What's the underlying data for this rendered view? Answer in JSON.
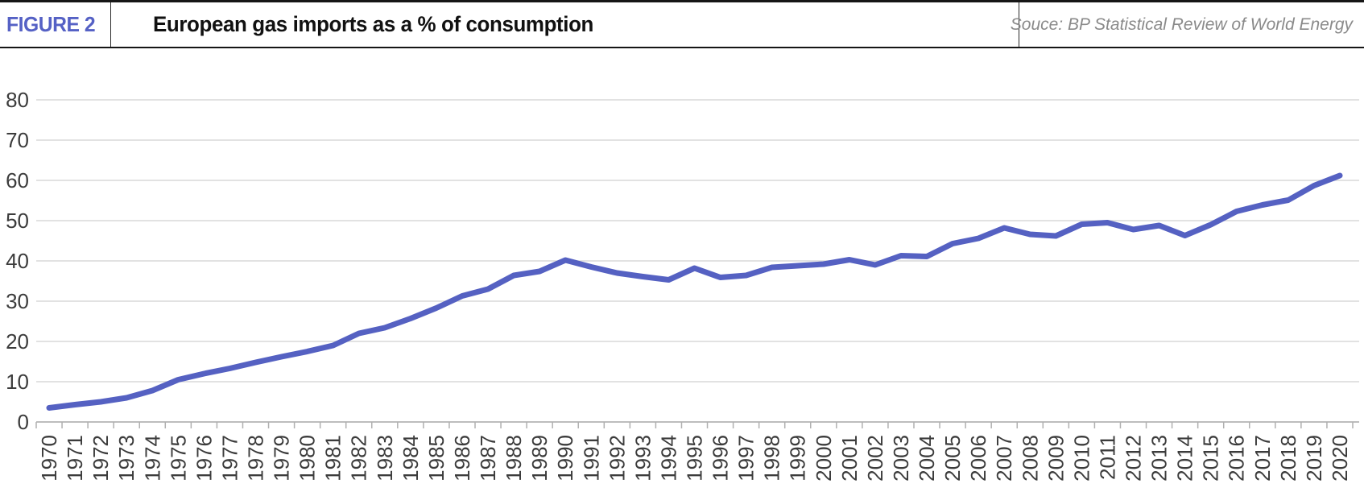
{
  "figure": {
    "label": "FIGURE 2",
    "title": "European gas imports as a % of consumption",
    "source": "Souce: BP Statistical Review of World Energy"
  },
  "colors": {
    "line": "#5561c2",
    "figure_label": "#5561c5",
    "title_text": "#111111",
    "source_text": "#8a8a8a",
    "gridline": "#d9d9d9",
    "axis_line": "#bdbdbd",
    "tick_mark": "#b0b0b0",
    "axis_label": "#3c3c3c",
    "header_border": "#161616",
    "background": "#ffffff"
  },
  "chart_data": {
    "type": "line",
    "title": "European gas imports as a % of consumption",
    "xlabel": "",
    "ylabel": "",
    "x": [
      1970,
      1971,
      1972,
      1973,
      1974,
      1975,
      1976,
      1977,
      1978,
      1979,
      1980,
      1981,
      1982,
      1983,
      1984,
      1985,
      1986,
      1987,
      1988,
      1989,
      1990,
      1991,
      1992,
      1993,
      1994,
      1995,
      1996,
      1997,
      1998,
      1999,
      2000,
      2001,
      2002,
      2003,
      2004,
      2005,
      2006,
      2007,
      2008,
      2009,
      2010,
      2011,
      2012,
      2013,
      2014,
      2015,
      2016,
      2017,
      2018,
      2019,
      2020
    ],
    "series": [
      {
        "name": "European gas imports as % of consumption",
        "values": [
          3.5,
          4.3,
          5,
          6,
          7.8,
          10.5,
          12,
          13.3,
          14.8,
          16.2,
          17.5,
          19,
          22,
          23.4,
          25.7,
          28.3,
          31.3,
          33,
          36.4,
          37.4,
          40.2,
          38.5,
          37,
          36.1,
          35.3,
          38.2,
          35.9,
          36.4,
          38.4,
          38.8,
          39.2,
          40.3,
          39,
          41.3,
          41.1,
          44.3,
          45.6,
          48.2,
          46.6,
          46.2,
          49.1,
          49.5,
          47.8,
          48.8,
          46.3,
          49,
          52.3,
          53.9,
          55.1,
          58.7,
          61.2
        ]
      }
    ],
    "ylim": [
      0,
      80
    ],
    "yticks": [
      0,
      10,
      20,
      30,
      40,
      50,
      60,
      70,
      80
    ],
    "grid": "horizontal",
    "legend_position": "none",
    "x_tick_label_rotation": 90
  }
}
